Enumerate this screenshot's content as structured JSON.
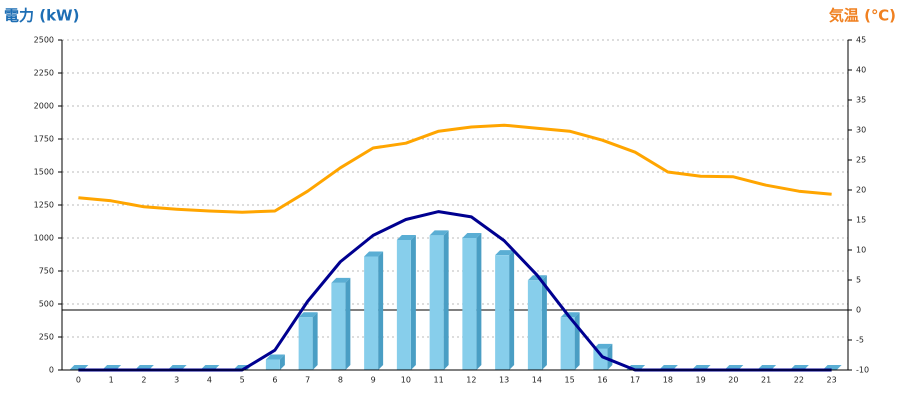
{
  "chart_data": {
    "type": "combo",
    "y_title": "電力 (kW)",
    "y2_title": "気温 (℃)",
    "categories": [
      "0",
      "1",
      "2",
      "3",
      "4",
      "5",
      "6",
      "7",
      "8",
      "9",
      "10",
      "11",
      "12",
      "13",
      "14",
      "15",
      "16",
      "17",
      "18",
      "19",
      "20",
      "21",
      "22",
      "23"
    ],
    "series": [
      {
        "type": "bar",
        "color": "#87ceeb",
        "values": [
          0,
          0,
          0,
          0,
          0,
          0,
          80,
          400,
          660,
          860,
          985,
          1020,
          1000,
          870,
          680,
          400,
          160,
          0,
          0,
          0,
          0,
          0,
          0,
          0
        ]
      },
      {
        "type": "line",
        "color": "#000090",
        "values": [
          0,
          0,
          0,
          0,
          0,
          0,
          150,
          520,
          820,
          1020,
          1140,
          1200,
          1160,
          980,
          720,
          400,
          100,
          0,
          0,
          0,
          0,
          0,
          0,
          0
        ]
      },
      {
        "type": "line",
        "axis": "y2",
        "color": "#ffa500",
        "values": [
          18.7,
          18.2,
          17.2,
          16.8,
          16.5,
          16.3,
          16.5,
          19.8,
          23.7,
          27,
          27.8,
          29.8,
          30.5,
          30.8,
          30.3,
          29.8,
          28.3,
          26.3,
          23,
          22.3,
          22.2,
          20.8,
          19.8,
          19.3
        ]
      }
    ],
    "ylim": [
      0,
      2500
    ],
    "yticks": [
      0,
      250,
      500,
      750,
      1000,
      1250,
      1500,
      1750,
      2000,
      2250,
      2500
    ],
    "y2lim": [
      -10,
      45
    ],
    "y2ticks": [
      -10,
      -5,
      0,
      5,
      10,
      15,
      20,
      25,
      30,
      35,
      40,
      45
    ],
    "grid": true
  }
}
